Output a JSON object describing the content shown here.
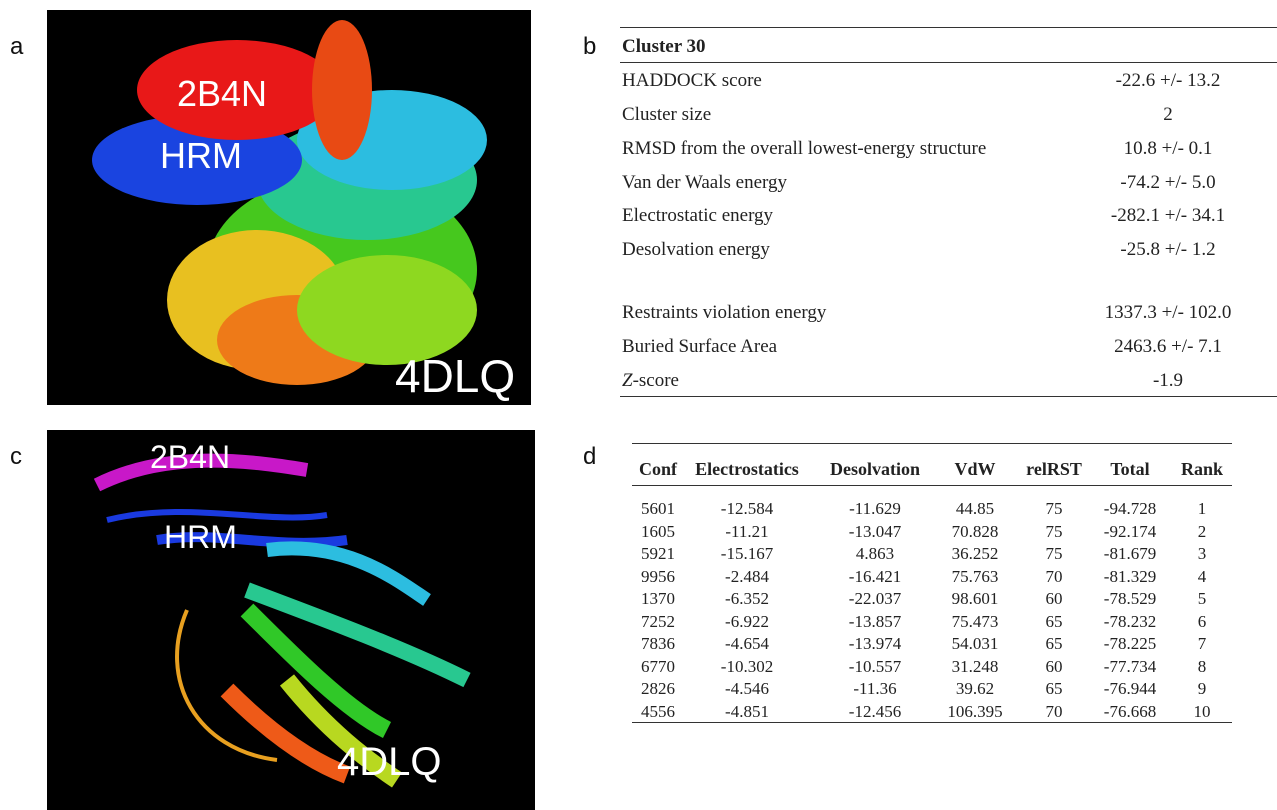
{
  "panels": {
    "a": "a",
    "b": "b",
    "c": "c",
    "d": "d"
  },
  "image_a": {
    "labels": [
      "2B4N",
      "HRM",
      "4DLQ"
    ]
  },
  "image_c": {
    "labels": [
      "2B4N",
      "HRM",
      "4DLQ"
    ]
  },
  "table_b": {
    "title": "Cluster 30",
    "rows": [
      [
        "HADDOCK score",
        "-22.6 +/- 13.2"
      ],
      [
        "Cluster size",
        "2"
      ],
      [
        "RMSD from the overall lowest-energy structure",
        "10.8 +/- 0.1"
      ],
      [
        "Van der Waals energy",
        "-74.2 +/- 5.0"
      ],
      [
        "Electrostatic energy",
        "-282.1 +/- 34.1"
      ],
      [
        "Desolvation energy",
        "-25.8 +/- 1.2"
      ],
      [
        "Restraints violation energy",
        "1337.3 +/- 102.0"
      ],
      [
        "Buried Surface Area",
        "2463.6 +/- 7.1"
      ],
      [
        "Z-score",
        "-1.9"
      ]
    ]
  },
  "table_d": {
    "header": [
      "Conf",
      "Electrostatics",
      "Desolvation",
      "VdW",
      "relRST",
      "Total",
      "Rank"
    ],
    "rows": [
      [
        "5601",
        "-12.584",
        "-11.629",
        "44.85",
        "75",
        "-94.728",
        "1"
      ],
      [
        "1605",
        "-11.21",
        "-13.047",
        "70.828",
        "75",
        "-92.174",
        "2"
      ],
      [
        "5921",
        "-15.167",
        "4.863",
        "36.252",
        "75",
        "-81.679",
        "3"
      ],
      [
        "9956",
        "-2.484",
        "-16.421",
        "75.763",
        "70",
        "-81.329",
        "4"
      ],
      [
        "1370",
        "-6.352",
        "-22.037",
        "98.601",
        "60",
        "-78.529",
        "5"
      ],
      [
        "7252",
        "-6.922",
        "-13.857",
        "75.473",
        "65",
        "-78.232",
        "6"
      ],
      [
        "7836",
        "-4.654",
        "-13.974",
        "54.031",
        "65",
        "-78.225",
        "7"
      ],
      [
        "6770",
        "-10.302",
        "-10.557",
        "31.248",
        "60",
        "-77.734",
        "8"
      ],
      [
        "2826",
        "-4.546",
        "-11.36",
        "39.62",
        "65",
        "-76.944",
        "9"
      ],
      [
        "4556",
        "-4.851",
        "-12.456",
        "106.395",
        "70",
        "-76.668",
        "10"
      ]
    ]
  }
}
